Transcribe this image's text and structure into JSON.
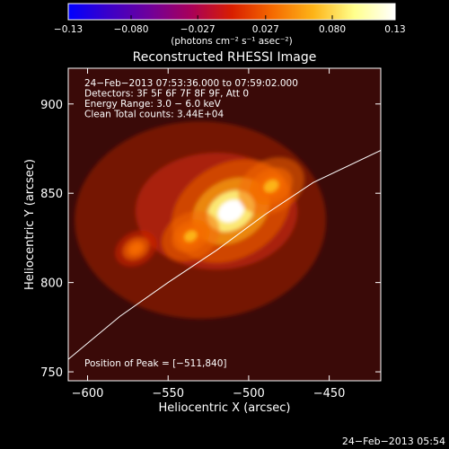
{
  "chart_data": {
    "type": "heatmap",
    "title": "Reconstructed RHESSI Image",
    "xlabel": "Heliocentric X (arcsec)",
    "ylabel": "Heliocentric Y (arcsec)",
    "xlim": [
      -612,
      -418
    ],
    "ylim": [
      745,
      920
    ],
    "x_ticks": [
      -600,
      -550,
      -500,
      -450
    ],
    "y_ticks": [
      750,
      800,
      850,
      900
    ],
    "x_tick_labels": [
      "−600",
      "−550",
      "−500",
      "−450"
    ],
    "y_tick_labels": [
      "750",
      "800",
      "850",
      "900"
    ],
    "colorbar": {
      "min": -0.13,
      "max": 0.13,
      "ticks": [
        -0.13,
        -0.08,
        -0.027,
        0.027,
        0.08,
        0.13
      ],
      "tick_labels": [
        "−0.13",
        "−0.080",
        "−0.027",
        "0.027",
        "0.080",
        "0.13"
      ],
      "unit_label": "(photons cm⁻² s⁻¹ asec⁻²)",
      "colors": [
        "#0000ff",
        "#3c00c8",
        "#70009a",
        "#a8005a",
        "#d81e00",
        "#f56a00",
        "#fdb418",
        "#ffff8c",
        "#ffffff"
      ]
    },
    "info_lines": [
      "24−Feb−2013 07:53:36.000 to 07:59:02.000",
      "Detectors: 3F 5F 6F 7F 8F 9F, Att 0",
      "Energy Range: 3.0 − 6.0 keV",
      "Clean     Total counts: 3.44E+04"
    ],
    "peak_label": "Position of Peak = [−511,840]",
    "peak": {
      "x": -511,
      "y": 840
    },
    "sources": [
      {
        "x": -511,
        "y": 840,
        "amplitude": 0.125
      },
      {
        "x": -486,
        "y": 854,
        "amplitude": 0.06
      },
      {
        "x": -536,
        "y": 826,
        "amplitude": 0.05
      },
      {
        "x": -570,
        "y": 819,
        "amplitude": 0.03
      }
    ],
    "limb_points": [
      [
        -612,
        757
      ],
      [
        -580,
        781
      ],
      [
        -550,
        800
      ],
      [
        -520,
        818
      ],
      [
        -490,
        838
      ],
      [
        -460,
        856
      ],
      [
        -418,
        874
      ]
    ],
    "footer": "24−Feb−2013 05:54"
  }
}
